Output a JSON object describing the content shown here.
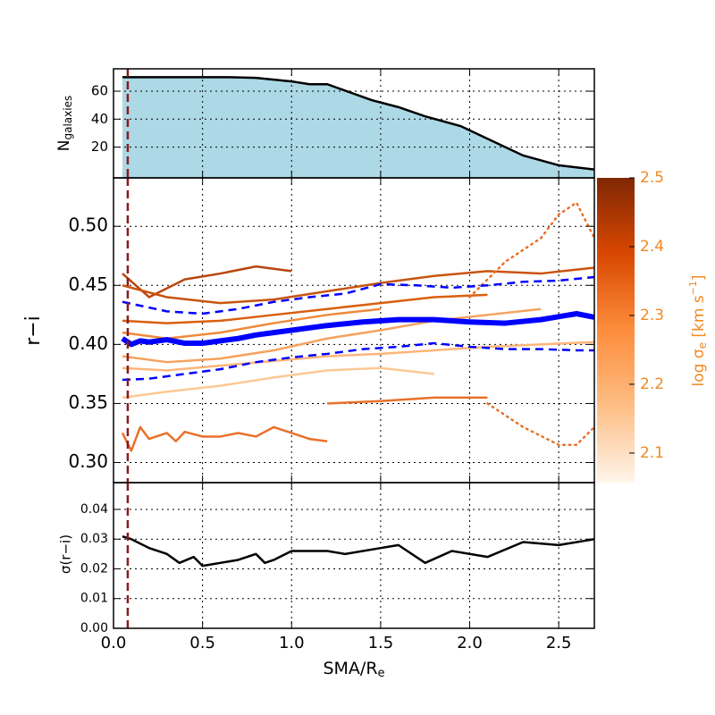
{
  "chart_data": [
    {
      "type": "area",
      "ylabel": {
        "main": "N",
        "sub": "galaxies"
      },
      "x": [
        0.05,
        0.1,
        0.65,
        0.8,
        1.0,
        1.1,
        1.2,
        1.45,
        1.6,
        1.75,
        1.95,
        2.1,
        2.3,
        2.5,
        2.7
      ],
      "values": [
        70,
        70,
        70,
        69.5,
        67,
        65,
        65,
        53.6,
        48.6,
        42,
        35,
        26,
        14,
        7,
        4
      ],
      "color": "#add8e6",
      "line_color": "#000000",
      "ylim": [
        -2,
        76
      ],
      "yticks": [
        20,
        40,
        60
      ],
      "vline": 0.08,
      "vline_color": "#8b1a1a",
      "grid": true
    },
    {
      "type": "line",
      "ylabel": "r−i",
      "ylim": [
        0.283,
        0.541
      ],
      "yticks": [
        {
          "value": 0.3,
          "label": "0.30"
        },
        {
          "value": 0.35,
          "label": "0.35"
        },
        {
          "value": 0.4,
          "label": "0.40"
        },
        {
          "value": 0.45,
          "label": "0.45"
        },
        {
          "value": 0.5,
          "label": "0.50"
        }
      ],
      "vline": 0.08,
      "vline_color": "#8b1a1a",
      "grid": true,
      "colorbar": {
        "label": {
          "a": "log σ",
          "sub": "e",
          "b": " [km s",
          "sup": "−1",
          "c": "]"
        },
        "lim": [
          2.057,
          2.5
        ],
        "ticks": [
          2.1,
          2.2,
          2.3,
          2.4,
          2.5
        ],
        "colors": [
          "#fff5eb",
          "#fdbe85",
          "#fd8d3c",
          "#d94801",
          "#7f2704"
        ]
      },
      "series": [
        {
          "color": "#e8702a",
          "style": "solid",
          "x": [
            0.05,
            0.1,
            0.15,
            0.2,
            0.3,
            0.35,
            0.4,
            0.5,
            0.6,
            0.7,
            0.8,
            0.9,
            1.0,
            1.1,
            1.2
          ],
          "values": [
            0.325,
            0.31,
            0.33,
            0.32,
            0.325,
            0.318,
            0.326,
            0.322,
            0.322,
            0.325,
            0.322,
            0.33,
            0.325,
            0.32,
            0.318
          ]
        },
        {
          "color": "#b8460e",
          "style": "solid",
          "x": [
            0.05,
            0.2,
            0.4,
            0.6,
            0.8,
            1.0
          ],
          "values": [
            0.46,
            0.44,
            0.455,
            0.46,
            0.466,
            0.462
          ]
        },
        {
          "color": "#c9540f",
          "style": "solid",
          "x": [
            0.05,
            0.3,
            0.6,
            0.9,
            1.2,
            1.5,
            1.8,
            2.1,
            2.4,
            2.7
          ],
          "values": [
            0.45,
            0.44,
            0.435,
            0.438,
            0.445,
            0.452,
            0.458,
            0.462,
            0.46,
            0.465
          ]
        },
        {
          "color": "#f5a25d",
          "style": "solid",
          "x": [
            0.05,
            0.3,
            0.6,
            0.9,
            1.2,
            1.5,
            1.8,
            2.1,
            2.4
          ],
          "values": [
            0.39,
            0.385,
            0.388,
            0.395,
            0.405,
            0.412,
            0.42,
            0.425,
            0.43
          ]
        },
        {
          "color": "#fdc894",
          "style": "solid",
          "x": [
            0.05,
            0.3,
            0.6,
            0.9,
            1.2,
            1.5,
            1.8
          ],
          "values": [
            0.355,
            0.36,
            0.365,
            0.372,
            0.378,
            0.38,
            0.375
          ]
        },
        {
          "color": "#e8702a",
          "style": "solid",
          "x": [
            1.2,
            1.5,
            1.8,
            2.1
          ],
          "values": [
            0.35,
            0.352,
            0.355,
            0.355
          ]
        },
        {
          "color": "#d9600f",
          "style": "solid",
          "x": [
            0.05,
            0.3,
            0.6,
            0.9,
            1.2,
            1.5,
            1.8,
            2.1
          ],
          "values": [
            0.42,
            0.418,
            0.42,
            0.425,
            0.43,
            0.435,
            0.44,
            0.442
          ]
        },
        {
          "color": "#fdb57a",
          "style": "solid",
          "x": [
            0.05,
            0.3,
            0.6,
            0.9,
            1.2,
            1.5,
            1.8,
            2.1,
            2.4,
            2.7
          ],
          "values": [
            0.38,
            0.378,
            0.382,
            0.386,
            0.39,
            0.392,
            0.395,
            0.398,
            0.4,
            0.402
          ]
        },
        {
          "color": "#ef8a3c",
          "style": "solid",
          "x": [
            0.05,
            0.3,
            0.6,
            0.9,
            1.2,
            1.5
          ],
          "values": [
            0.41,
            0.405,
            0.41,
            0.418,
            0.425,
            0.43
          ]
        },
        {
          "color": "#e8702a",
          "style": "dotted",
          "x": [
            2.0,
            2.2,
            2.4,
            2.5,
            2.6,
            2.7
          ],
          "values": [
            0.44,
            0.47,
            0.49,
            0.51,
            0.52,
            0.49
          ]
        },
        {
          "color": "#e8702a",
          "style": "dotted",
          "x": [
            2.1,
            2.3,
            2.5,
            2.6,
            2.7
          ],
          "values": [
            0.35,
            0.33,
            0.315,
            0.315,
            0.33
          ]
        },
        {
          "color": "#0000ff",
          "style": "dashed",
          "x": [
            0.05,
            0.3,
            0.5,
            0.7,
            0.9,
            1.1,
            1.3,
            1.5,
            1.7,
            1.9,
            2.1,
            2.3,
            2.5,
            2.7
          ],
          "values": [
            0.436,
            0.428,
            0.426,
            0.43,
            0.436,
            0.44,
            0.443,
            0.451,
            0.45,
            0.448,
            0.45,
            0.453,
            0.454,
            0.457
          ]
        },
        {
          "color": "#0000ff",
          "style": "dashed",
          "x": [
            0.05,
            0.2,
            0.4,
            0.6,
            0.8,
            1.0,
            1.2,
            1.4,
            1.6,
            1.8,
            2.0,
            2.2,
            2.4,
            2.6,
            2.7
          ],
          "values": [
            0.37,
            0.371,
            0.375,
            0.379,
            0.385,
            0.389,
            0.392,
            0.396,
            0.398,
            0.401,
            0.398,
            0.396,
            0.396,
            0.395,
            0.395
          ]
        },
        {
          "color": "#0000ff",
          "style": "thick",
          "x": [
            0.05,
            0.1,
            0.15,
            0.2,
            0.3,
            0.4,
            0.5,
            0.6,
            0.7,
            0.8,
            0.9,
            1.0,
            1.2,
            1.4,
            1.6,
            1.8,
            2.0,
            2.2,
            2.4,
            2.6,
            2.7
          ],
          "values": [
            0.405,
            0.4,
            0.403,
            0.402,
            0.404,
            0.401,
            0.401,
            0.403,
            0.405,
            0.408,
            0.41,
            0.412,
            0.416,
            0.419,
            0.421,
            0.421,
            0.419,
            0.418,
            0.421,
            0.426,
            0.423
          ]
        }
      ]
    },
    {
      "type": "line",
      "ylabel": "σ(r−i)",
      "ylim": [
        0,
        0.049
      ],
      "yticks": [
        {
          "value": 0,
          "label": "0.00"
        },
        {
          "value": 0.01,
          "label": "0.01"
        },
        {
          "value": 0.02,
          "label": "0.02"
        },
        {
          "value": 0.03,
          "label": "0.03"
        },
        {
          "value": 0.04,
          "label": "0.04"
        }
      ],
      "vline": 0.08,
      "vline_color": "#8b1a1a",
      "grid": true,
      "xlabel": {
        "main": "SMA/R",
        "sub": "e"
      },
      "xlim": [
        0,
        2.7
      ],
      "xticks": [
        {
          "value": 0,
          "label": "0.0"
        },
        {
          "value": 0.5,
          "label": "0.5"
        },
        {
          "value": 1,
          "label": "1.0"
        },
        {
          "value": 1.5,
          "label": "1.5"
        },
        {
          "value": 2,
          "label": "2.0"
        },
        {
          "value": 2.5,
          "label": "2.5"
        }
      ],
      "series": [
        {
          "color": "#000000",
          "style": "solid",
          "x": [
            0.05,
            0.1,
            0.2,
            0.3,
            0.37,
            0.45,
            0.5,
            0.6,
            0.7,
            0.8,
            0.85,
            0.9,
            1.0,
            1.1,
            1.2,
            1.3,
            1.5,
            1.6,
            1.75,
            1.9,
            2.1,
            2.3,
            2.5,
            2.7
          ],
          "values": [
            0.0309,
            0.03,
            0.027,
            0.025,
            0.022,
            0.024,
            0.021,
            0.022,
            0.023,
            0.025,
            0.022,
            0.023,
            0.026,
            0.026,
            0.026,
            0.025,
            0.027,
            0.028,
            0.022,
            0.026,
            0.024,
            0.029,
            0.028,
            0.03
          ]
        }
      ]
    }
  ]
}
